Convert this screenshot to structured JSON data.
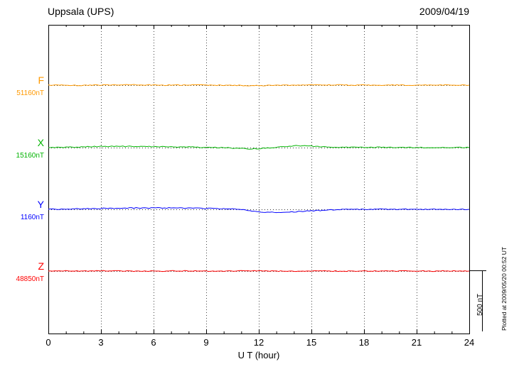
{
  "chart_data": {
    "type": "line",
    "title": "Uppsala (UPS)",
    "date": "2009/04/19",
    "xlabel": "U T (hour)",
    "x_range": [
      0,
      24
    ],
    "x_ticks": [
      "0",
      "3",
      "6",
      "9",
      "12",
      "15",
      "18",
      "21",
      "24"
    ],
    "grid_hours": [
      3,
      6,
      9,
      12,
      15,
      18,
      21
    ],
    "scale_bar": {
      "label": "500 nT",
      "nT": 500
    },
    "plotted_at": "Plotted at 2009/05/20 00:52 UT",
    "series": [
      {
        "name": "F",
        "baseline_label": "51160nT",
        "baseline_nT": 51160,
        "color": "#ff9900",
        "offsets_nT": [
          0,
          -1,
          -2,
          -2,
          -1,
          0,
          0,
          1,
          1,
          2,
          2,
          1,
          1,
          0,
          0,
          1,
          1,
          1,
          0,
          0,
          -1,
          -1,
          -2,
          -3,
          -3,
          -2,
          -1,
          0,
          1,
          2,
          2,
          2,
          1,
          1,
          1,
          0,
          0,
          0,
          1,
          1,
          1,
          0,
          0,
          0,
          0,
          1,
          1,
          0,
          0
        ]
      },
      {
        "name": "X",
        "baseline_label": "15160nT",
        "baseline_nT": 15160,
        "color": "#00b300",
        "offsets_nT": [
          0,
          1,
          2,
          4,
          6,
          8,
          9,
          9,
          10,
          10,
          9,
          9,
          8,
          7,
          6,
          5,
          4,
          3,
          2,
          1,
          0,
          -4,
          -8,
          -10,
          -8,
          -4,
          3,
          10,
          14,
          15,
          12,
          8,
          4,
          3,
          2,
          2,
          1,
          2,
          2,
          1,
          1,
          1,
          0,
          1,
          1,
          0,
          1,
          1,
          0
        ]
      },
      {
        "name": "Y",
        "baseline_label": "1160nT",
        "baseline_nT": 1160,
        "color": "#0000ff",
        "offsets_nT": [
          0,
          1,
          2,
          3,
          5,
          6,
          7,
          8,
          9,
          10,
          11,
          11,
          10,
          11,
          12,
          11,
          10,
          9,
          8,
          6,
          5,
          2,
          -3,
          -12,
          -19,
          -23,
          -25,
          -23,
          -20,
          -16,
          -12,
          -9,
          -6,
          -3,
          -1,
          0,
          0,
          1,
          1,
          0,
          0,
          1,
          1,
          0,
          0,
          1,
          0,
          0,
          0
        ]
      },
      {
        "name": "Z",
        "baseline_label": "48850nT",
        "baseline_nT": 48850,
        "color": "#ff0000",
        "offsets_nT": [
          0,
          1,
          1,
          0,
          0,
          1,
          2,
          1,
          1,
          0,
          0,
          -1,
          -1,
          0,
          1,
          1,
          0,
          0,
          -1,
          -1,
          0,
          0,
          1,
          2,
          2,
          1,
          0,
          -1,
          -2,
          -1,
          0,
          1,
          1,
          0,
          0,
          1,
          1,
          0,
          0,
          -1,
          0,
          1,
          1,
          0,
          0,
          1,
          0,
          0,
          0
        ]
      }
    ]
  }
}
